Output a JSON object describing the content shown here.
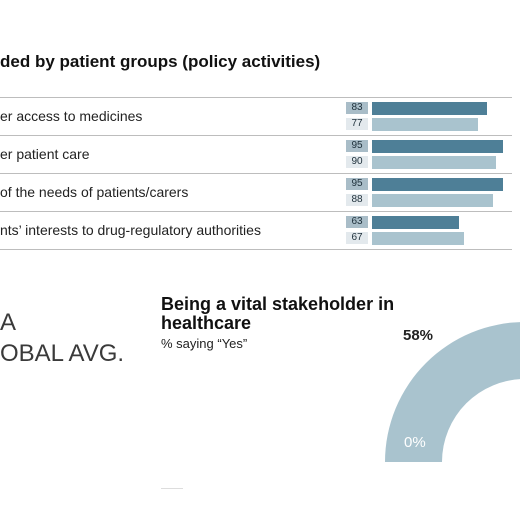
{
  "chart_data": [
    {
      "type": "bar",
      "title": "ded by patient groups (policy activities)",
      "categories": [
        "er access to medicines",
        "er patient care",
        "of the needs of patients/carers",
        "nts’ interests to drug-regulatory authorities"
      ],
      "series": [
        {
          "values": [
            83,
            95,
            95,
            63
          ],
          "color": "#4e7f97"
        },
        {
          "values": [
            77,
            90,
            88,
            67
          ],
          "color": "#a9c3ce"
        }
      ],
      "xlim": [
        0,
        100
      ],
      "grid": false,
      "legend": "none"
    },
    {
      "type": "pie",
      "title": "Being a vital stakeholder in healthcare",
      "subtitle": "% saying “Yes”",
      "value": 58,
      "value_label": "58%",
      "min_label": "0%",
      "range": [
        0,
        100
      ],
      "color": "#a9c3ce"
    }
  ],
  "left_text": {
    "line1": "A",
    "line2": "OBAL AVG."
  },
  "colors": {
    "dark_bar": "#4e7f97",
    "light_bar": "#a9c3ce",
    "gauge": "#a9c3ce"
  }
}
